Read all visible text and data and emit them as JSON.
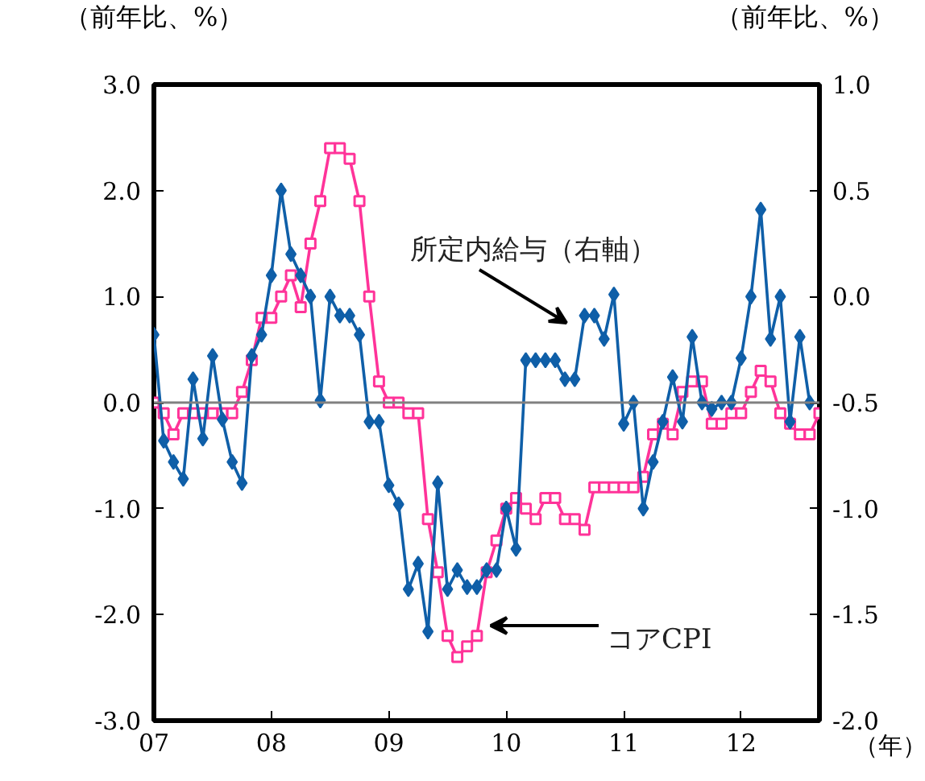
{
  "chart_data": {
    "type": "line",
    "x": [
      "2007-01",
      "2007-02",
      "2007-03",
      "2007-04",
      "2007-05",
      "2007-06",
      "2007-07",
      "2007-08",
      "2007-09",
      "2007-10",
      "2007-11",
      "2007-12",
      "2008-01",
      "2008-02",
      "2008-03",
      "2008-04",
      "2008-05",
      "2008-06",
      "2008-07",
      "2008-08",
      "2008-09",
      "2008-10",
      "2008-11",
      "2008-12",
      "2009-01",
      "2009-02",
      "2009-03",
      "2009-04",
      "2009-05",
      "2009-06",
      "2009-07",
      "2009-08",
      "2009-09",
      "2009-10",
      "2009-11",
      "2009-12",
      "2010-01",
      "2010-02",
      "2010-03",
      "2010-04",
      "2010-05",
      "2010-06",
      "2010-07",
      "2010-08",
      "2010-09",
      "2010-10",
      "2010-11",
      "2010-12",
      "2011-01",
      "2011-02",
      "2011-03",
      "2011-04",
      "2011-05",
      "2011-06",
      "2011-07",
      "2011-08",
      "2011-09",
      "2011-10",
      "2011-11",
      "2011-12",
      "2012-01",
      "2012-02",
      "2012-03",
      "2012-04",
      "2012-05",
      "2012-06",
      "2012-07",
      "2012-08",
      "2012-09"
    ],
    "xlim": [
      "2007-01",
      "2012-09"
    ],
    "xticks": [
      {
        "value": "2007",
        "label": "07"
      },
      {
        "value": "2008",
        "label": "08"
      },
      {
        "value": "2009",
        "label": "09"
      },
      {
        "value": "2010",
        "label": "10"
      },
      {
        "value": "2011",
        "label": "11"
      },
      {
        "value": "2012",
        "label": "12"
      }
    ],
    "xlabel": "（年）",
    "ylabel": "（前年比、%）",
    "y2label": "（前年比、%）",
    "ylim": [
      -3,
      3
    ],
    "yticks": [
      {
        "value": -3,
        "label": "-3.0"
      },
      {
        "value": -2,
        "label": "-2.0"
      },
      {
        "value": -1,
        "label": "-1.0"
      },
      {
        "value": 0,
        "label": "0.0"
      },
      {
        "value": 1,
        "label": "1.0"
      },
      {
        "value": 2,
        "label": "2.0"
      },
      {
        "value": 3,
        "label": "3.0"
      }
    ],
    "y2lim": [
      -2,
      1
    ],
    "y2ticks": [
      {
        "value": -2,
        "label": "-2.0"
      },
      {
        "value": -1.5,
        "label": "-1.5"
      },
      {
        "value": -1,
        "label": "-1.0"
      },
      {
        "value": -0.5,
        "label": "-0.5"
      },
      {
        "value": 0,
        "label": "0.0"
      },
      {
        "value": 0.5,
        "label": "0.5"
      },
      {
        "value": 1,
        "label": "1.0"
      }
    ],
    "ref_lines": [
      {
        "axis": "y",
        "value": 0,
        "color": "#808080"
      }
    ],
    "grid": false,
    "line_style": "solid",
    "series": [
      {
        "name": "コアCPI",
        "color": "#ff3399",
        "marker": "square",
        "values": [
          0.0,
          -0.1,
          -0.3,
          -0.1,
          -0.1,
          -0.1,
          -0.1,
          -0.1,
          -0.1,
          0.1,
          0.4,
          0.8,
          0.8,
          1.0,
          1.2,
          0.9,
          1.5,
          1.9,
          2.4,
          2.4,
          2.3,
          1.9,
          1.0,
          0.2,
          0.0,
          0.0,
          -0.1,
          -0.1,
          -1.1,
          -1.6,
          -2.2,
          -2.4,
          -2.3,
          -2.2,
          -1.6,
          -1.3,
          -1.0,
          -0.9,
          -1.0,
          -1.1,
          -0.9,
          -0.9,
          -1.1,
          -1.1,
          -1.2,
          -0.8,
          -0.8,
          -0.8,
          -0.8,
          -0.8,
          -0.7,
          -0.3,
          -0.2,
          -0.3,
          0.1,
          0.2,
          0.2,
          -0.2,
          -0.2,
          -0.1,
          -0.1,
          0.1,
          0.3,
          0.2,
          -0.1,
          -0.2,
          -0.3,
          -0.3,
          -0.1
        ]
      },
      {
        "name": "所定内給与（右軸）",
        "color": "#0f5fa8",
        "marker": "diamond",
        "axis": "y2",
        "values": [
          -0.18,
          -0.68,
          -0.78,
          -0.86,
          -0.39,
          -0.67,
          -0.28,
          -0.58,
          -0.78,
          -0.88,
          -0.28,
          -0.18,
          0.1,
          0.5,
          0.2,
          0.1,
          0.0,
          -0.49,
          0.0,
          -0.09,
          -0.09,
          -0.18,
          -0.59,
          -0.59,
          -0.89,
          -0.98,
          -1.38,
          -1.26,
          -1.58,
          -0.88,
          -1.38,
          -1.29,
          -1.37,
          -1.37,
          -1.29,
          -1.29,
          -1.0,
          -1.19,
          -0.3,
          -0.3,
          -0.3,
          -0.3,
          -0.39,
          -0.39,
          -0.09,
          -0.09,
          -0.2,
          0.01,
          -0.6,
          -0.5,
          -1.0,
          -0.78,
          -0.59,
          -0.38,
          -0.59,
          -0.19,
          -0.5,
          -0.53,
          -0.5,
          -0.5,
          -0.29,
          0.0,
          0.41,
          -0.2,
          0.0,
          -0.59,
          -0.19,
          -0.5,
          null
        ]
      }
    ]
  }
}
